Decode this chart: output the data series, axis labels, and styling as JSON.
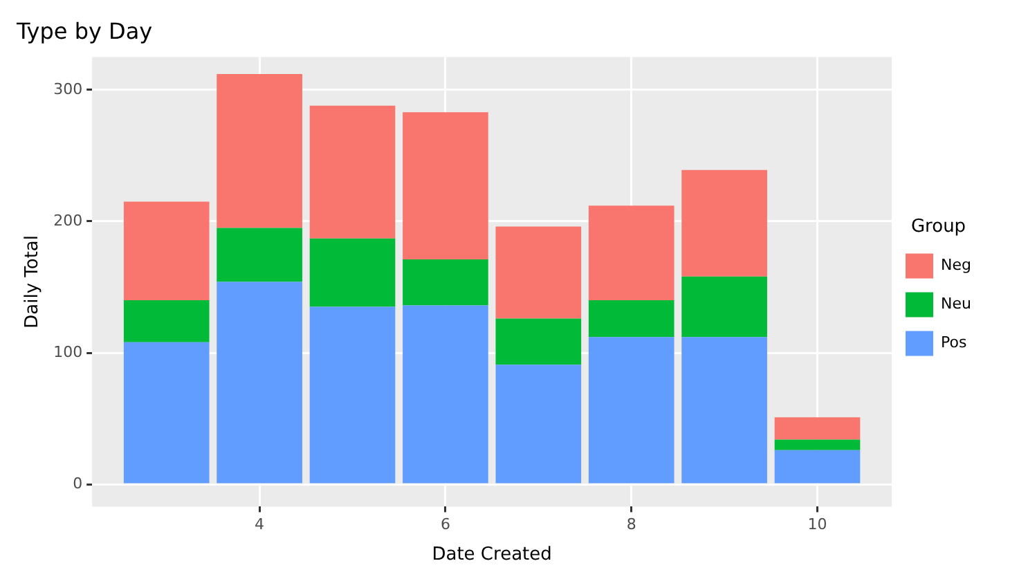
{
  "chart_data": {
    "type": "bar",
    "title": "Type by Day",
    "xlabel": "Date Created",
    "ylabel": "Daily Total",
    "legend_title": "Group",
    "x": [
      3,
      4,
      5,
      6,
      7,
      8,
      9,
      10
    ],
    "series": [
      {
        "name": "Pos",
        "color": "#619cff",
        "values": [
          108,
          154,
          135,
          136,
          91,
          112,
          112,
          26
        ]
      },
      {
        "name": "Neu",
        "color": "#00ba38",
        "values": [
          32,
          41,
          52,
          35,
          35,
          28,
          46,
          8
        ]
      },
      {
        "name": "Neg",
        "color": "#f8766d",
        "values": [
          75,
          117,
          101,
          112,
          70,
          72,
          81,
          17
        ]
      }
    ],
    "stacked": true,
    "xlim": [
      2.2,
      10.8
    ],
    "xticks": [
      4,
      6,
      8,
      10
    ],
    "ylim": [
      -17,
      325
    ],
    "yticks": [
      0,
      100,
      200,
      300
    ],
    "grid": true,
    "legend": "right"
  }
}
